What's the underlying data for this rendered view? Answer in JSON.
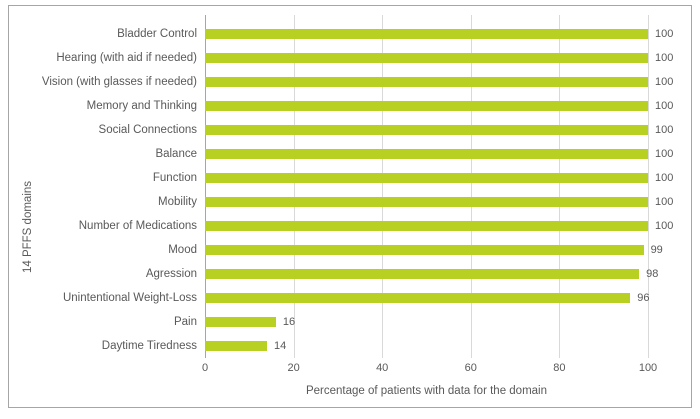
{
  "chart_data": {
    "type": "bar",
    "orientation": "horizontal",
    "title": "",
    "xlabel": "Percentage of patients with data for the domain",
    "ylabel": "14 PFFS domains",
    "categories": [
      "Bladder Control",
      "Hearing (with aid if needed)",
      "Vision (with glasses if needed)",
      "Memory and Thinking",
      "Social Connections",
      "Balance",
      "Function",
      "Mobility",
      "Number of Medications",
      "Mood",
      "Agression",
      "Unintentional Weight-Loss",
      "Pain",
      "Daytime Tiredness"
    ],
    "values": [
      100,
      100,
      100,
      100,
      100,
      100,
      100,
      100,
      100,
      99,
      98,
      96,
      16,
      14
    ],
    "data_labels_shown": true,
    "xlim": [
      0,
      100
    ],
    "xticks": [
      0,
      20,
      40,
      60,
      80,
      100
    ],
    "grid": "vertical gridlines at each x tick",
    "legend": "none"
  },
  "colors": {
    "bar": "#b8d022",
    "gridline": "#d9d9d9",
    "axis_line": "#a6a6a6",
    "frame_border": "#a6a6a6",
    "text": "#595959",
    "background": "#ffffff"
  }
}
